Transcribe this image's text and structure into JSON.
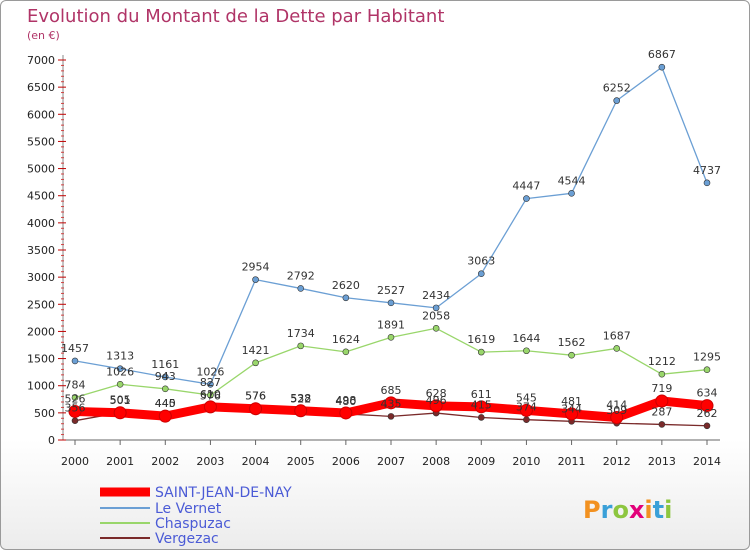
{
  "chart_data": {
    "type": "line",
    "title": "Evolution du Montant de la Dette par Habitant",
    "subtitle": "(en €)",
    "x": [
      2000,
      2001,
      2002,
      2003,
      2004,
      2005,
      2006,
      2007,
      2008,
      2009,
      2010,
      2011,
      2012,
      2013,
      2014
    ],
    "ylim": [
      0,
      7000
    ],
    "yticks": [
      0,
      500,
      1000,
      1500,
      2000,
      2500,
      3000,
      3500,
      4000,
      4500,
      5000,
      5500,
      6000,
      6500,
      7000
    ],
    "grid": false,
    "legend_position": "bottom-left",
    "series": [
      {
        "name": "SAINT-JEAN-DE-NAY",
        "color": "#ff0000",
        "values": [
          526,
          501,
          440,
          610,
          576,
          538,
          498,
          685,
          628,
          611,
          545,
          481,
          414,
          719,
          634
        ]
      },
      {
        "name": "Le Vernet",
        "color": "#6b9fd4",
        "values": [
          1457,
          1313,
          1161,
          1026,
          2954,
          2792,
          2620,
          2527,
          2434,
          3063,
          4447,
          4544,
          6252,
          6867,
          4737
        ]
      },
      {
        "name": "Chaspuzac",
        "color": "#99d66b",
        "values": [
          784,
          1026,
          943,
          827,
          1421,
          1734,
          1624,
          1891,
          2058,
          1619,
          1644,
          1562,
          1687,
          1212,
          1295
        ]
      },
      {
        "name": "Vergezac",
        "color": "#7a2a2a",
        "values": [
          356,
          505,
          445,
          576,
          576,
          522,
          480,
          435,
          496,
          415,
          374,
          344,
          309,
          287,
          262
        ]
      }
    ]
  },
  "logo": {
    "text": "Proxiti",
    "colors": [
      "#f29120",
      "#3aa0d8",
      "#8dc63f",
      "#e2007a"
    ]
  }
}
